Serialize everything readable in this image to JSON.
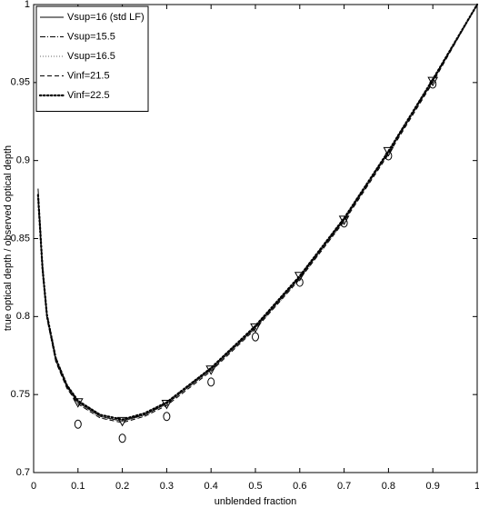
{
  "chart_data": {
    "type": "line",
    "xlabel": "unblended fraction",
    "ylabel": "true optical depth / observed optical depth",
    "x": [
      0.01,
      0.02,
      0.03,
      0.05,
      0.075,
      0.1,
      0.15,
      0.2,
      0.25,
      0.3,
      0.4,
      0.5,
      0.6,
      0.7,
      0.8,
      0.9,
      1.0
    ],
    "series": [
      {
        "name": "Vsup=16 (std LF)",
        "color": "#000000",
        "style": "solid",
        "values": [
          0.877,
          0.83,
          0.8,
          0.772,
          0.755,
          0.745,
          0.736,
          0.733,
          0.737,
          0.744,
          0.766,
          0.793,
          0.825,
          0.862,
          0.905,
          0.951,
          1.0
        ]
      },
      {
        "name": "Vsup=15.5",
        "color": "#000000",
        "style": "dashdot",
        "values": [
          0.882,
          0.834,
          0.802,
          0.774,
          0.756,
          0.746,
          0.737,
          0.734,
          0.737,
          0.745,
          0.767,
          0.794,
          0.826,
          0.863,
          0.906,
          0.952,
          1.0
        ]
      },
      {
        "name": "Vsup=16.5",
        "color": "#666666",
        "style": "dotted",
        "values": [
          0.872,
          0.827,
          0.798,
          0.771,
          0.754,
          0.744,
          0.735,
          0.733,
          0.736,
          0.744,
          0.766,
          0.792,
          0.824,
          0.861,
          0.905,
          0.951,
          1.0
        ]
      },
      {
        "name": "Vinf=21.5",
        "color": "#000000",
        "style": "dashed",
        "values": [
          0.875,
          0.829,
          0.799,
          0.771,
          0.754,
          0.744,
          0.735,
          0.732,
          0.736,
          0.743,
          0.765,
          0.792,
          0.824,
          0.861,
          0.904,
          0.95,
          1.0
        ]
      },
      {
        "name": "Vinf=22.5",
        "color": "#000000",
        "style": "dots",
        "values": [
          0.878,
          0.831,
          0.801,
          0.773,
          0.756,
          0.746,
          0.737,
          0.734,
          0.738,
          0.745,
          0.767,
          0.794,
          0.826,
          0.863,
          0.906,
          0.952,
          1.0
        ]
      }
    ],
    "marker_x": [
      0.1,
      0.2,
      0.3,
      0.4,
      0.5,
      0.6,
      0.7,
      0.8,
      0.9
    ],
    "triangles": [
      0.745,
      0.733,
      0.744,
      0.766,
      0.793,
      0.826,
      0.862,
      0.906,
      0.951
    ],
    "circles": [
      0.731,
      0.722,
      0.736,
      0.758,
      0.787,
      0.822,
      0.86,
      0.903,
      0.949
    ],
    "xlim": [
      0,
      1
    ],
    "xticks": [
      0,
      0.1,
      0.2,
      0.3,
      0.4,
      0.5,
      0.6,
      0.7,
      0.8,
      0.9,
      1
    ],
    "ylim": [
      0.7,
      1
    ],
    "yticks": [
      0.7,
      0.75,
      0.8,
      0.85,
      0.9,
      0.95,
      1
    ],
    "legend": "upper-left"
  }
}
